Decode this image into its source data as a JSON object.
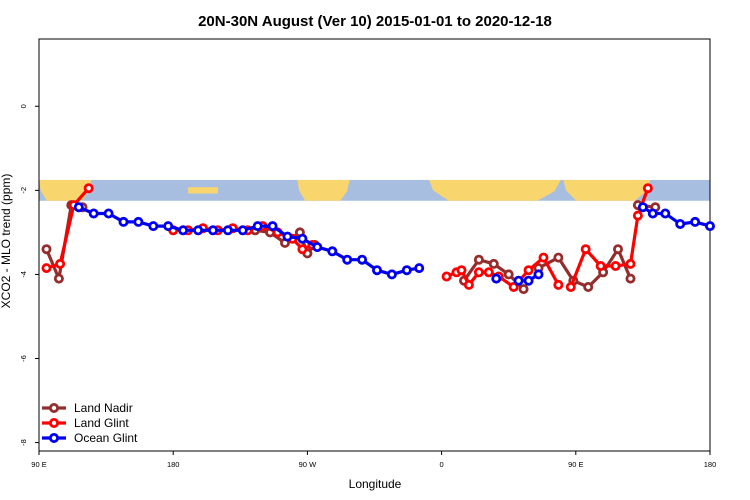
{
  "chart_data": {
    "type": "line",
    "title": "20N-30N August (Ver 10)   2015-01-01 to 2020-12-18",
    "xlabel": "Longitude",
    "ylabel": "XCO2 - MLO trend (ppm)",
    "xlim": [
      -90,
      180
    ],
    "ylim": [
      -8.2,
      1.6
    ],
    "x_ticks": [
      {
        "value": -90,
        "label": "90 E"
      },
      {
        "value": -36,
        "label": "180"
      },
      {
        "value": 18,
        "label": "90 W"
      },
      {
        "value": 72,
        "label": "0"
      },
      {
        "value": 126,
        "label": "90 E"
      },
      {
        "value": 180,
        "label": "180"
      }
    ],
    "y_ticks": [
      {
        "value": 0,
        "label": "0"
      },
      {
        "value": -2,
        "label": "-2"
      },
      {
        "value": -4,
        "label": "-4"
      },
      {
        "value": -6,
        "label": "-6"
      },
      {
        "value": -8,
        "label": "-8"
      }
    ],
    "map_band": {
      "ymin": -2.25,
      "ymax": -1.75,
      "ocean_color": "#a7bee0",
      "land_color": "#f9d56e"
    },
    "legend_position": "bottom-left",
    "series": [
      {
        "name": "Land Nadir",
        "color": "#952d2d",
        "segments": [
          {
            "x": [
              -87,
              -82,
              -77,
              -72.5
            ],
            "y": [
              -3.4,
              -4.1,
              -2.35,
              -2.4
            ]
          },
          {
            "x": [
              -3,
              3,
              9,
              15,
              18,
              21
            ],
            "y": [
              -2.95,
              -3.0,
              -3.25,
              -3.0,
              -3.5,
              -3.3
            ]
          },
          {
            "x": [
              81,
              87,
              93,
              99,
              105
            ],
            "y": [
              -4.15,
              -3.65,
              -3.75,
              -4.0,
              -4.35
            ]
          },
          {
            "x": [
              111,
              119,
              125,
              131,
              137,
              143,
              148
            ],
            "y": [
              -3.85,
              -3.6,
              -4.15,
              -4.3,
              -3.95,
              -3.4,
              -4.1
            ]
          },
          {
            "x": [
              151,
              158
            ],
            "y": [
              -2.35,
              -2.4
            ]
          }
        ]
      },
      {
        "name": "Land Glint",
        "color": "#ff0000",
        "segments": [
          {
            "x": [
              -87,
              -81.5,
              -76,
              -70
            ],
            "y": [
              -3.85,
              -3.75,
              -2.35,
              -1.95
            ]
          },
          {
            "x": [
              -36,
              -30,
              -24,
              -18,
              -12,
              -6,
              0,
              6,
              12,
              16,
              20
            ],
            "y": [
              -2.95,
              -2.95,
              -2.9,
              -2.95,
              -2.9,
              -2.95,
              -2.85,
              -3.0,
              -3.15,
              -3.4,
              -3.3
            ]
          },
          {
            "x": [
              74,
              78,
              80,
              83,
              87,
              91,
              95,
              101,
              107,
              113,
              119
            ],
            "y": [
              -4.05,
              -3.95,
              -3.9,
              -4.25,
              -3.95,
              -3.95,
              -4.05,
              -4.3,
              -3.9,
              -3.6,
              -4.25
            ]
          },
          {
            "x": [
              124,
              130,
              136,
              142,
              148,
              151,
              155
            ],
            "y": [
              -4.3,
              -3.4,
              -3.8,
              -3.8,
              -3.75,
              -2.6,
              -1.95
            ]
          }
        ]
      },
      {
        "name": "Ocean Glint",
        "color": "#0000ee",
        "segments": [
          {
            "x": [
              -74,
              -68,
              -62,
              -56,
              -50,
              -44,
              -38,
              -32,
              -26,
              -20,
              -14,
              -8,
              -2,
              4,
              10,
              16,
              22,
              28,
              34,
              40,
              46,
              52,
              58,
              63
            ],
            "y": [
              -2.4,
              -2.55,
              -2.55,
              -2.75,
              -2.75,
              -2.85,
              -2.85,
              -2.95,
              -2.95,
              -2.95,
              -2.95,
              -2.95,
              -2.85,
              -2.85,
              -3.1,
              -3.15,
              -3.35,
              -3.45,
              -3.65,
              -3.65,
              -3.9,
              -4.0,
              -3.9,
              -3.85
            ]
          },
          {
            "x": [
              94
            ],
            "y": [
              -4.1
            ]
          },
          {
            "x": [
              103,
              107,
              111
            ],
            "y": [
              -4.15,
              -4.15,
              -4.0
            ]
          },
          {
            "x": [
              153,
              157,
              162,
              168,
              174,
              180
            ],
            "y": [
              -2.4,
              -2.55,
              -2.55,
              -2.8,
              -2.75,
              -2.85
            ]
          }
        ]
      }
    ]
  }
}
